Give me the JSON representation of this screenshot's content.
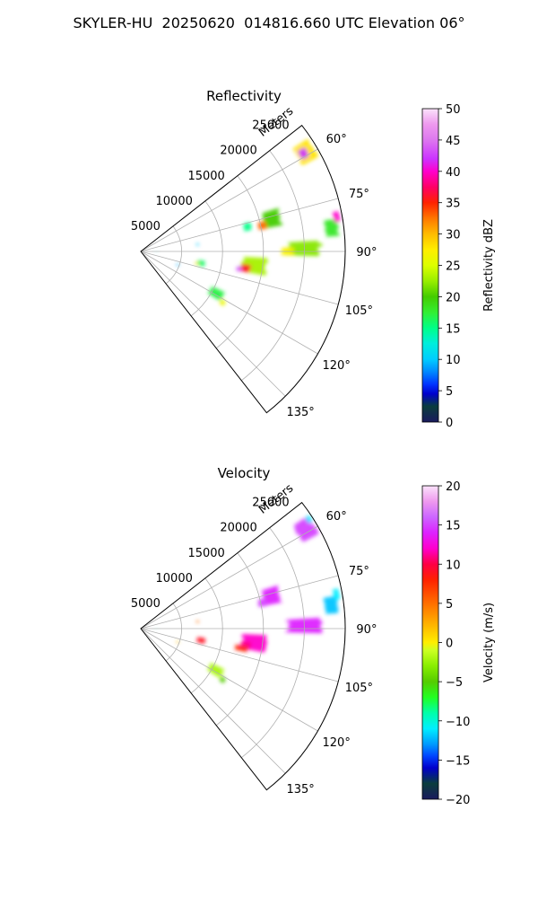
{
  "figure": {
    "suptitle": "SKYLER-HU  20250620  014816.660 UTC Elevation 06°"
  },
  "chart_data": [
    {
      "type": "polar-sector",
      "title": "Reflectivity",
      "range_label": "Meters",
      "range_ticks": [
        5000,
        10000,
        15000,
        20000,
        25000
      ],
      "range_max": 25000,
      "azimuth_range": [
        52,
        142
      ],
      "azimuth_ticks": [
        "60°",
        "75°",
        "90°",
        "105°",
        "120°",
        "135°"
      ],
      "grid": true,
      "colorbar": {
        "label": "Reflectivity dBZ",
        "ticks": [
          0,
          5,
          10,
          15,
          20,
          25,
          30,
          35,
          40,
          45,
          50
        ],
        "min": 0,
        "max": 50,
        "stops": [
          {
            "v": 0,
            "c": "#1a1a5e"
          },
          {
            "v": 2.5,
            "c": "#0a3d3d"
          },
          {
            "v": 4.5,
            "c": "#0000cc"
          },
          {
            "v": 6,
            "c": "#0033ff"
          },
          {
            "v": 8,
            "c": "#0088ff"
          },
          {
            "v": 10,
            "c": "#00ccff"
          },
          {
            "v": 12.5,
            "c": "#00eedd"
          },
          {
            "v": 15,
            "c": "#00ff88"
          },
          {
            "v": 17.5,
            "c": "#33ee33"
          },
          {
            "v": 20,
            "c": "#44cc00"
          },
          {
            "v": 22.5,
            "c": "#99ee00"
          },
          {
            "v": 25,
            "c": "#ddff00"
          },
          {
            "v": 27.5,
            "c": "#ffee00"
          },
          {
            "v": 30,
            "c": "#ffbb00"
          },
          {
            "v": 32.5,
            "c": "#ff7700"
          },
          {
            "v": 35,
            "c": "#ff2200"
          },
          {
            "v": 37.5,
            "c": "#ff0066"
          },
          {
            "v": 40,
            "c": "#ff00cc"
          },
          {
            "v": 42,
            "c": "#cc33ff"
          },
          {
            "v": 45,
            "c": "#dd77ee"
          },
          {
            "v": 47.5,
            "c": "#ee99ee"
          },
          {
            "v": 50,
            "c": "#fbe3fb"
          }
        ]
      },
      "echoes": [
        {
          "az": 59,
          "r": 23500,
          "dr": 2200,
          "daz": 6,
          "v": 28
        },
        {
          "az": 59,
          "r": 23200,
          "dr": 1000,
          "daz": 3,
          "v": 42
        },
        {
          "az": 76,
          "r": 16500,
          "dr": 2000,
          "daz": 7,
          "v": 20
        },
        {
          "az": 78,
          "r": 15200,
          "dr": 1000,
          "daz": 3.5,
          "v": 33
        },
        {
          "az": 77,
          "r": 13400,
          "dr": 900,
          "daz": 4,
          "v": 15
        },
        {
          "az": 83,
          "r": 23500,
          "dr": 1500,
          "daz": 5,
          "v": 18
        },
        {
          "az": 80,
          "r": 24300,
          "dr": 700,
          "daz": 3,
          "v": 40
        },
        {
          "az": 89,
          "r": 20000,
          "dr": 4000,
          "daz": 5,
          "v": 22
        },
        {
          "az": 90,
          "r": 18000,
          "dr": 1500,
          "daz": 3,
          "v": 27
        },
        {
          "az": 97,
          "r": 14000,
          "dr": 3000,
          "daz": 8,
          "v": 23
        },
        {
          "az": 99,
          "r": 13000,
          "dr": 1200,
          "daz": 4,
          "v": 36
        },
        {
          "az": 100,
          "r": 12200,
          "dr": 600,
          "daz": 2.5,
          "v": 43
        },
        {
          "az": 101,
          "r": 7500,
          "dr": 1000,
          "daz": 5,
          "v": 16
        },
        {
          "az": 102,
          "r": 7000,
          "dr": 500,
          "daz": 2,
          "v": 28
        },
        {
          "az": 119,
          "r": 10500,
          "dr": 1800,
          "daz": 6,
          "v": 17
        },
        {
          "az": 122,
          "r": 11800,
          "dr": 600,
          "daz": 3,
          "v": 26
        },
        {
          "az": 110,
          "r": 4800,
          "dr": 400,
          "daz": 2,
          "v": 9
        },
        {
          "az": 83,
          "r": 7000,
          "dr": 300,
          "daz": 2,
          "v": 10
        },
        {
          "az": 91,
          "r": 1900,
          "dr": 400,
          "daz": 1,
          "v": 12
        }
      ]
    },
    {
      "type": "polar-sector",
      "title": "Velocity",
      "range_label": "Meters",
      "range_ticks": [
        5000,
        10000,
        15000,
        20000,
        25000
      ],
      "range_max": 25000,
      "azimuth_range": [
        52,
        142
      ],
      "azimuth_ticks": [
        "60°",
        "75°",
        "90°",
        "105°",
        "120°",
        "135°"
      ],
      "grid": true,
      "colorbar": {
        "label": "Velocity (m/s)",
        "ticks": [
          -20,
          -15,
          -10,
          -5,
          0,
          5,
          10,
          15,
          20
        ],
        "min": -20,
        "max": 20,
        "stops": [
          {
            "v": -20,
            "c": "#1a1a5e"
          },
          {
            "v": -18,
            "c": "#0a3d3d"
          },
          {
            "v": -16,
            "c": "#0000cc"
          },
          {
            "v": -14.5,
            "c": "#0044ff"
          },
          {
            "v": -13,
            "c": "#0099ff"
          },
          {
            "v": -11,
            "c": "#00eeff"
          },
          {
            "v": -9,
            "c": "#00ffaa"
          },
          {
            "v": -7,
            "c": "#22ff22"
          },
          {
            "v": -5,
            "c": "#55cc00"
          },
          {
            "v": -3,
            "c": "#88ee00"
          },
          {
            "v": -1,
            "c": "#ccff22"
          },
          {
            "v": 0,
            "c": "#ffee00"
          },
          {
            "v": 2,
            "c": "#ffbb00"
          },
          {
            "v": 4,
            "c": "#ff8800"
          },
          {
            "v": 6,
            "c": "#ff5500"
          },
          {
            "v": 8,
            "c": "#ff2200"
          },
          {
            "v": 10,
            "c": "#ff0044"
          },
          {
            "v": 12,
            "c": "#ff00cc"
          },
          {
            "v": 14,
            "c": "#dd22ff"
          },
          {
            "v": 16,
            "c": "#cc66ff"
          },
          {
            "v": 18,
            "c": "#ee99ee"
          },
          {
            "v": 20,
            "c": "#fbe3fb"
          }
        ]
      },
      "echoes": [
        {
          "az": 59,
          "r": 23500,
          "dr": 2200,
          "daz": 6,
          "v": 15
        },
        {
          "az": 57,
          "r": 24500,
          "dr": 600,
          "daz": 2,
          "v": -11
        },
        {
          "az": 76,
          "r": 16500,
          "dr": 2000,
          "daz": 7,
          "v": 14
        },
        {
          "az": 78,
          "r": 15200,
          "dr": 1000,
          "daz": 3.5,
          "v": 15
        },
        {
          "az": 83,
          "r": 23500,
          "dr": 1500,
          "daz": 5,
          "v": -12
        },
        {
          "az": 80,
          "r": 24300,
          "dr": 700,
          "daz": 3,
          "v": -11
        },
        {
          "az": 89,
          "r": 20000,
          "dr": 4000,
          "daz": 5,
          "v": 14
        },
        {
          "az": 97,
          "r": 14000,
          "dr": 3000,
          "daz": 8,
          "v": 12
        },
        {
          "az": 99,
          "r": 13000,
          "dr": 1200,
          "daz": 4,
          "v": 11
        },
        {
          "az": 101,
          "r": 12500,
          "dr": 1500,
          "daz": 3,
          "v": 8
        },
        {
          "az": 101,
          "r": 7500,
          "dr": 1000,
          "daz": 5,
          "v": 9
        },
        {
          "az": 119,
          "r": 10500,
          "dr": 1800,
          "daz": 6,
          "v": -2
        },
        {
          "az": 122,
          "r": 11800,
          "dr": 600,
          "daz": 3,
          "v": -5
        },
        {
          "az": 110,
          "r": 4800,
          "dr": 400,
          "daz": 2,
          "v": 2
        },
        {
          "az": 83,
          "r": 7000,
          "dr": 300,
          "daz": 2,
          "v": 5
        },
        {
          "az": 91,
          "r": 1900,
          "dr": 400,
          "daz": 1,
          "v": -10
        }
      ]
    }
  ]
}
